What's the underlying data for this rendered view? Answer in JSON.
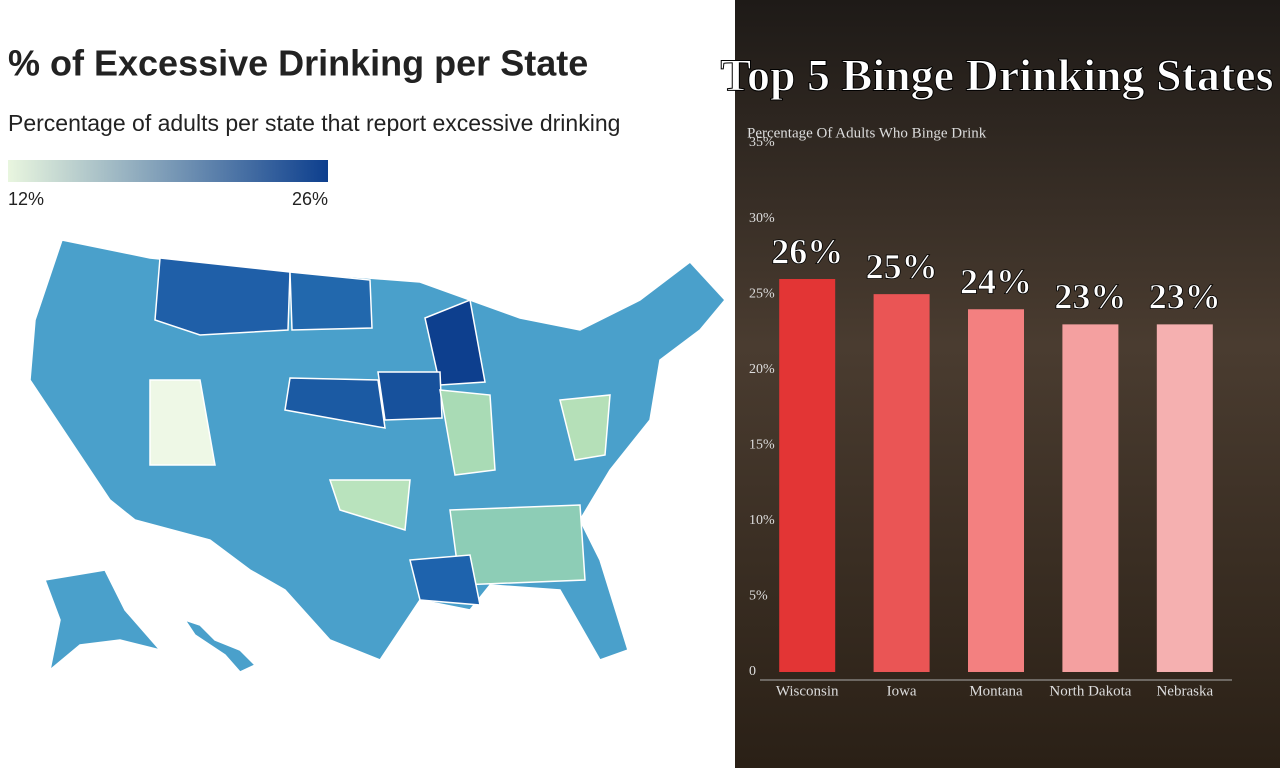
{
  "chart_data": [
    {
      "type": "choropleth",
      "title": "% of Excessive Drinking per State",
      "subtitle": "Percentage of adults per state that report excessive drinking",
      "colorbar": {
        "range": [
          12,
          26
        ],
        "colors": [
          "#e9f6df",
          "#0d3f8e"
        ],
        "ticks": [
          {
            "value": 12,
            "label": "12%"
          },
          {
            "value": 26,
            "label": "26%"
          }
        ]
      }
    },
    {
      "type": "bar",
      "title": "Top 5 Binge Drinking States",
      "subtitle": "Percentage Of Adults Who Binge Drink",
      "categories": [
        "Wisconsin",
        "Iowa",
        "Montana",
        "North Dakota",
        "Nebraska"
      ],
      "values": [
        26,
        25,
        24,
        23,
        23
      ],
      "value_labels": [
        "26%",
        "25%",
        "24%",
        "23%",
        "23%"
      ],
      "colors": [
        "#e33535",
        "#ea5555",
        "#f38080",
        "#f4a0a0",
        "#f5b0b0"
      ],
      "ylim": [
        0,
        35
      ],
      "yticks": [
        0,
        {
          "value": 5,
          "label": "5%"
        },
        {
          "value": 10,
          "label": "10%"
        },
        {
          "value": 15,
          "label": "15%"
        },
        {
          "value": 20,
          "label": "20%"
        },
        {
          "value": 25,
          "label": "25%"
        },
        {
          "value": 30,
          "label": "30%"
        },
        {
          "value": 35,
          "label": "35%"
        }
      ]
    }
  ]
}
